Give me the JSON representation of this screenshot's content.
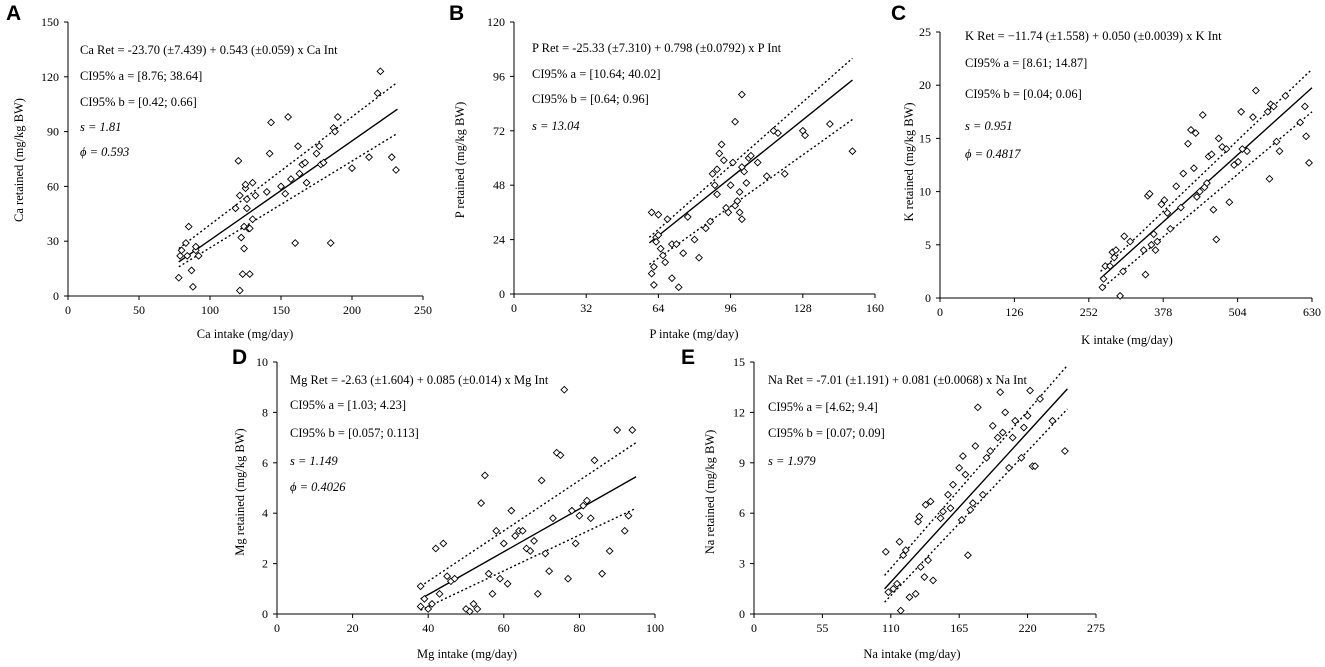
{
  "chart_data": [
    {
      "panel": "A",
      "type": "scatter",
      "xlabel": "Ca intake (mg/day)",
      "ylabel": "Ca retained (mg/kg BW)",
      "xlim": [
        0,
        250
      ],
      "ylim": [
        0,
        150
      ],
      "xticks": [
        "0",
        "50",
        "100",
        "150",
        "200",
        "250"
      ],
      "yticks": [
        "0",
        "30",
        "60",
        "90",
        "120",
        "150"
      ],
      "annotations": [
        "Ca Ret = -23.70 (±7.439) + 0.543 (±0.059) x Ca Int",
        "CI95% a = [8.76; 38.64]",
        "CI95% b = [0.42; 0.66]",
        "s = 1.81",
        "ϕ = 0.593"
      ],
      "fit": {
        "intercept": -23.7,
        "slope": 0.543,
        "x_range": [
          78,
          232
        ]
      },
      "ci_upper": [
        [
          78,
          26
        ],
        [
          232,
          117
        ]
      ],
      "ci_lower": [
        [
          78,
          16
        ],
        [
          232,
          89
        ]
      ],
      "points": [
        [
          78,
          10
        ],
        [
          79,
          22
        ],
        [
          80,
          25
        ],
        [
          83,
          29
        ],
        [
          84,
          22
        ],
        [
          85,
          38
        ],
        [
          87,
          14
        ],
        [
          88,
          5
        ],
        [
          90,
          25
        ],
        [
          90,
          27
        ],
        [
          92,
          22
        ],
        [
          118,
          48
        ],
        [
          120,
          74
        ],
        [
          121,
          55
        ],
        [
          121,
          3
        ],
        [
          122,
          32
        ],
        [
          123,
          12
        ],
        [
          124,
          26
        ],
        [
          124,
          38
        ],
        [
          125,
          59
        ],
        [
          125,
          61
        ],
        [
          126,
          53
        ],
        [
          126,
          48
        ],
        [
          127,
          37
        ],
        [
          128,
          12
        ],
        [
          128,
          37
        ],
        [
          130,
          62
        ],
        [
          130,
          42
        ],
        [
          132,
          55
        ],
        [
          140,
          57
        ],
        [
          142,
          78
        ],
        [
          143,
          95
        ],
        [
          150,
          60
        ],
        [
          153,
          56
        ],
        [
          155,
          98
        ],
        [
          157,
          64
        ],
        [
          160,
          29
        ],
        [
          162,
          82
        ],
        [
          163,
          67
        ],
        [
          165,
          72
        ],
        [
          167,
          73
        ],
        [
          168,
          62
        ],
        [
          175,
          78
        ],
        [
          177,
          82
        ],
        [
          178,
          72
        ],
        [
          180,
          73
        ],
        [
          185,
          29
        ],
        [
          187,
          92
        ],
        [
          188,
          90
        ],
        [
          190,
          98
        ],
        [
          200,
          70
        ],
        [
          212,
          76
        ],
        [
          218,
          111
        ],
        [
          220,
          123
        ],
        [
          228,
          76
        ],
        [
          231,
          69
        ]
      ]
    },
    {
      "panel": "B",
      "type": "scatter",
      "xlabel": "P intake (mg/day)",
      "ylabel": "P retained (mg/kg BW)",
      "xlim": [
        0,
        160
      ],
      "ylim": [
        0,
        120
      ],
      "xticks": [
        "0",
        "32",
        "64",
        "96",
        "128",
        "160"
      ],
      "yticks": [
        "0",
        "24",
        "48",
        "72",
        "96",
        "120"
      ],
      "annotations": [
        "P Ret = -25.33 (±7.310) + 0.798 (±0.0792) x P Int",
        "CI95% a = [10.64; 40.02]",
        "CI95% b = [0.64; 0.96]",
        "s = 13.04"
      ],
      "fit": {
        "intercept": -25.33,
        "slope": 0.798,
        "x_range": [
          60,
          150
        ]
      },
      "ci_upper": [
        [
          60,
          25
        ],
        [
          150,
          104
        ]
      ],
      "ci_lower": [
        [
          60,
          13
        ],
        [
          150,
          77
        ]
      ],
      "points": [
        [
          61,
          36
        ],
        [
          61,
          9
        ],
        [
          62,
          4
        ],
        [
          62,
          12
        ],
        [
          63,
          25
        ],
        [
          63,
          23
        ],
        [
          64,
          26
        ],
        [
          64,
          35
        ],
        [
          65,
          20
        ],
        [
          66,
          17
        ],
        [
          67,
          14
        ],
        [
          68,
          33
        ],
        [
          70,
          22
        ],
        [
          70,
          7
        ],
        [
          72,
          22
        ],
        [
          73,
          3
        ],
        [
          75,
          18
        ],
        [
          77,
          34
        ],
        [
          80,
          24
        ],
        [
          82,
          16
        ],
        [
          85,
          29
        ],
        [
          87,
          32
        ],
        [
          88,
          53
        ],
        [
          89,
          48
        ],
        [
          90,
          55
        ],
        [
          91,
          62
        ],
        [
          92,
          66
        ],
        [
          93,
          59
        ],
        [
          94,
          38
        ],
        [
          95,
          36
        ],
        [
          96,
          48
        ],
        [
          97,
          58
        ],
        [
          98,
          39
        ],
        [
          99,
          41
        ],
        [
          100,
          45
        ],
        [
          100,
          36
        ],
        [
          101,
          33
        ],
        [
          101,
          56
        ],
        [
          102,
          54
        ],
        [
          103,
          49
        ],
        [
          104,
          60
        ],
        [
          105,
          61
        ],
        [
          108,
          58
        ],
        [
          112,
          52
        ],
        [
          115,
          72
        ],
        [
          117,
          71
        ],
        [
          120,
          53
        ],
        [
          128,
          72
        ],
        [
          129,
          70
        ],
        [
          140,
          75
        ],
        [
          150,
          63
        ],
        [
          98,
          76
        ],
        [
          101,
          88
        ],
        [
          90,
          44
        ]
      ]
    },
    {
      "panel": "C",
      "type": "scatter",
      "xlabel": "K intake (mg/day)",
      "ylabel": "K retained (mg/kg BW)",
      "xlim": [
        0,
        630
      ],
      "ylim": [
        0,
        25
      ],
      "xticks": [
        "0",
        "126",
        "252",
        "378",
        "504",
        "630"
      ],
      "yticks": [
        "0",
        "5",
        "10",
        "15",
        "20",
        "25"
      ],
      "annotations": [
        "K Ret = −11.74 (±1.558) + 0.050 (±0.0039) x K Int",
        "CI95% a = [8.61; 14.87]",
        "CI95% b = [0.04; 0.06]",
        "s = 0.951",
        "ϕ = 0.4817"
      ],
      "fit": {
        "intercept": -11.74,
        "slope": 0.05,
        "x_range": [
          272,
          630
        ]
      },
      "ci_upper": [
        [
          272,
          2.5
        ],
        [
          630,
          21.5
        ]
      ],
      "ci_lower": [
        [
          272,
          0.8
        ],
        [
          630,
          17.5
        ]
      ],
      "points": [
        [
          275,
          1
        ],
        [
          277,
          1.8
        ],
        [
          280,
          3
        ],
        [
          288,
          3
        ],
        [
          292,
          4.3
        ],
        [
          295,
          3.8
        ],
        [
          298,
          4.5
        ],
        [
          305,
          0.2
        ],
        [
          310,
          2.5
        ],
        [
          312,
          5.8
        ],
        [
          322,
          5.3
        ],
        [
          345,
          4.5
        ],
        [
          348,
          2.2
        ],
        [
          352,
          9.6
        ],
        [
          355,
          9.8
        ],
        [
          358,
          5
        ],
        [
          362,
          6
        ],
        [
          365,
          4.5
        ],
        [
          368,
          5.3
        ],
        [
          375,
          8.8
        ],
        [
          380,
          9.2
        ],
        [
          385,
          8
        ],
        [
          390,
          6.5
        ],
        [
          400,
          10.5
        ],
        [
          408,
          8.5
        ],
        [
          412,
          11.7
        ],
        [
          420,
          14.5
        ],
        [
          425,
          15.8
        ],
        [
          430,
          12.2
        ],
        [
          433,
          15.5
        ],
        [
          435,
          9.5
        ],
        [
          440,
          10
        ],
        [
          445,
          17.2
        ],
        [
          448,
          10.4
        ],
        [
          452,
          10.8
        ],
        [
          455,
          13.3
        ],
        [
          460,
          13.5
        ],
        [
          463,
          8.3
        ],
        [
          468,
          5.5
        ],
        [
          472,
          15
        ],
        [
          478,
          14.2
        ],
        [
          485,
          14
        ],
        [
          490,
          9
        ],
        [
          498,
          12.5
        ],
        [
          505,
          12.8
        ],
        [
          510,
          17.5
        ],
        [
          512,
          14
        ],
        [
          520,
          13.8
        ],
        [
          530,
          17
        ],
        [
          535,
          19.5
        ],
        [
          555,
          17.5
        ],
        [
          558,
          11.2
        ],
        [
          560,
          18.2
        ],
        [
          565,
          18
        ],
        [
          570,
          14.7
        ],
        [
          575,
          13.8
        ],
        [
          585,
          19
        ],
        [
          610,
          16.5
        ],
        [
          618,
          18
        ],
        [
          620,
          15.2
        ],
        [
          625,
          12.7
        ]
      ]
    },
    {
      "panel": "D",
      "type": "scatter",
      "xlabel": "Mg intake (mg/day)",
      "ylabel": "Mg retained (mg/kg BW)",
      "xlim": [
        0,
        100
      ],
      "ylim": [
        0,
        10
      ],
      "xticks": [
        "0",
        "20",
        "40",
        "60",
        "80",
        "100"
      ],
      "yticks": [
        "0",
        "2",
        "4",
        "6",
        "8",
        "10"
      ],
      "annotations": [
        "Mg Ret = -2.63 (±1.604) + 0.085 (±0.014) x Mg Int",
        "CI95% a = [1.03; 4.23]",
        "CI95% b = [0.057; 0.113]",
        "s = 1.149",
        "ϕ = 0.4026"
      ],
      "fit": {
        "intercept": -2.63,
        "slope": 0.085,
        "x_range": [
          38,
          95
        ]
      },
      "ci_upper": [
        [
          38,
          1.1
        ],
        [
          95,
          6.8
        ]
      ],
      "ci_lower": [
        [
          38,
          0.15
        ],
        [
          95,
          4.2
        ]
      ],
      "points": [
        [
          38,
          0.3
        ],
        [
          38,
          1.1
        ],
        [
          39,
          0.6
        ],
        [
          40,
          0.2
        ],
        [
          41,
          0.4
        ],
        [
          42,
          2.6
        ],
        [
          43,
          0.8
        ],
        [
          44,
          2.8
        ],
        [
          45,
          1.5
        ],
        [
          46,
          1.3
        ],
        [
          47,
          1.4
        ],
        [
          50,
          0.2
        ],
        [
          51,
          0.1
        ],
        [
          52,
          0.4
        ],
        [
          53,
          0.2
        ],
        [
          54,
          4.4
        ],
        [
          55,
          5.5
        ],
        [
          56,
          1.6
        ],
        [
          57,
          0.8
        ],
        [
          58,
          3.3
        ],
        [
          59,
          1.4
        ],
        [
          60,
          2.8
        ],
        [
          61,
          1.2
        ],
        [
          62,
          4.1
        ],
        [
          63,
          3.1
        ],
        [
          64,
          3.3
        ],
        [
          65,
          3.3
        ],
        [
          66,
          2.6
        ],
        [
          67,
          2.5
        ],
        [
          68,
          2.9
        ],
        [
          69,
          0.8
        ],
        [
          70,
          5.3
        ],
        [
          71,
          2.4
        ],
        [
          72,
          1.7
        ],
        [
          73,
          3.8
        ],
        [
          74,
          6.4
        ],
        [
          75,
          6.3
        ],
        [
          76,
          8.9
        ],
        [
          77,
          1.4
        ],
        [
          78,
          4.1
        ],
        [
          79,
          2.8
        ],
        [
          80,
          3.9
        ],
        [
          81,
          4.3
        ],
        [
          82,
          4.5
        ],
        [
          83,
          3.8
        ],
        [
          84,
          6.1
        ],
        [
          86,
          1.6
        ],
        [
          88,
          2.5
        ],
        [
          90,
          7.3
        ],
        [
          92,
          3.3
        ],
        [
          93,
          3.9
        ],
        [
          94,
          7.3
        ]
      ]
    },
    {
      "panel": "E",
      "type": "scatter",
      "xlabel": "Na intake (mg/day)",
      "ylabel": "Na retained (mg/kg BW)",
      "xlim": [
        0,
        275
      ],
      "ylim": [
        0,
        15
      ],
      "xticks": [
        "0",
        "55",
        "110",
        "165",
        "220",
        "275"
      ],
      "yticks": [
        "0",
        "3",
        "6",
        "9",
        "12",
        "15"
      ],
      "annotations": [
        "Na Ret = -7.01 (±1.191) + 0.081 (±0.0068) x Na Int",
        "CI95% a = [4.62; 9.4]",
        "CI95% b = [0.07; 0.09]",
        "s = 1.979"
      ],
      "fit": {
        "intercept": -7.01,
        "slope": 0.081,
        "x_range": [
          105,
          252
        ]
      },
      "ci_upper": [
        [
          105,
          2.3
        ],
        [
          252,
          14.8
        ]
      ],
      "ci_lower": [
        [
          105,
          0.7
        ],
        [
          252,
          12.2
        ]
      ],
      "points": [
        [
          106,
          3.7
        ],
        [
          108,
          1.3
        ],
        [
          112,
          1.5
        ],
        [
          115,
          1.8
        ],
        [
          117,
          4.3
        ],
        [
          118,
          0.2
        ],
        [
          120,
          3.5
        ],
        [
          122,
          3.8
        ],
        [
          125,
          1
        ],
        [
          130,
          1.2
        ],
        [
          132,
          5.5
        ],
        [
          133,
          5.8
        ],
        [
          134,
          2.8
        ],
        [
          137,
          2.2
        ],
        [
          138,
          6.5
        ],
        [
          140,
          3.2
        ],
        [
          142,
          6.7
        ],
        [
          144,
          2
        ],
        [
          150,
          5.7
        ],
        [
          152,
          6.1
        ],
        [
          156,
          7.1
        ],
        [
          158,
          6.3
        ],
        [
          160,
          7.7
        ],
        [
          165,
          8.7
        ],
        [
          167,
          5.6
        ],
        [
          168,
          9.4
        ],
        [
          170,
          8.3
        ],
        [
          172,
          3.5
        ],
        [
          174,
          6.2
        ],
        [
          176,
          6.6
        ],
        [
          178,
          10
        ],
        [
          180,
          12.3
        ],
        [
          184,
          7.1
        ],
        [
          187,
          9.3
        ],
        [
          190,
          9.7
        ],
        [
          192,
          11.2
        ],
        [
          196,
          10.5
        ],
        [
          198,
          13.2
        ],
        [
          200,
          10.8
        ],
        [
          202,
          12
        ],
        [
          205,
          8.7
        ],
        [
          208,
          10.5
        ],
        [
          210,
          11.5
        ],
        [
          215,
          9.3
        ],
        [
          217,
          11.1
        ],
        [
          220,
          11.8
        ],
        [
          222,
          13.3
        ],
        [
          224,
          8.8
        ],
        [
          226,
          8.8
        ],
        [
          230,
          12.8
        ],
        [
          240,
          11.5
        ],
        [
          250,
          9.7
        ]
      ]
    }
  ]
}
